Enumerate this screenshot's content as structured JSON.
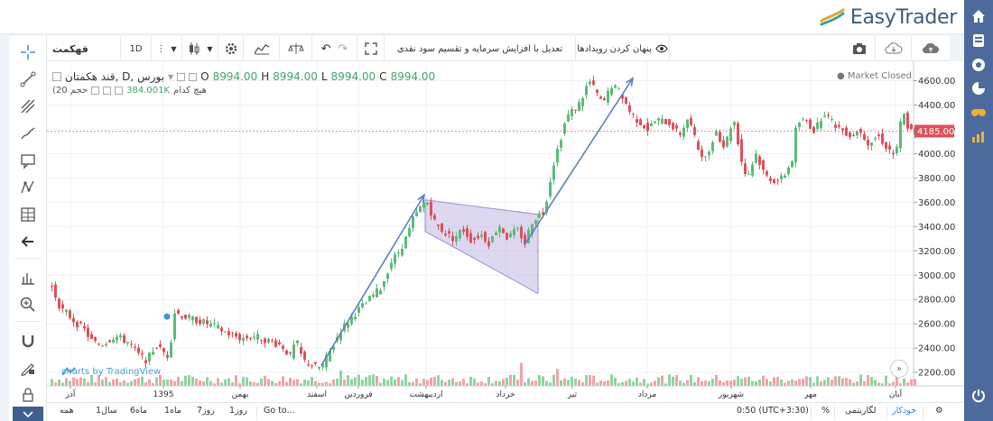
{
  "brand": {
    "logo_text": "EasyTrader"
  },
  "toolbar": {
    "symbol": "قهکمت",
    "interval": "1D",
    "add_label": "",
    "events_toggle": "پنهان کردن رویدادها",
    "adjustment": "تعدیل با افزایش سرمایه و تقسیم سود نقدی"
  },
  "legend": {
    "title": "بورس ,D ,قند هکمتان",
    "open_label": "O",
    "open": "8994.00",
    "high_label": "H",
    "high": "8994.00",
    "low_label": "L",
    "low": "8994.00",
    "close_label": "C",
    "close": "8994.00",
    "volume_name": "(حجم 20",
    "volume_value": "384.001K",
    "volume_tag": "هیچ کدام",
    "market_status": "Market Closed",
    "watermark": "charts by TradingView"
  },
  "chart_data": {
    "type": "candlestick",
    "yticks": [
      2200,
      2400,
      2600,
      2800,
      3000,
      3200,
      3400,
      3600,
      3800,
      4000,
      4200,
      4400,
      4600
    ],
    "ylim": [
      2090,
      4700
    ],
    "last_price": "4185.00",
    "x_labels": [
      "آذر",
      "1395",
      "بهمن",
      "اسفند",
      "فروردین",
      "اردیبهشت",
      "خرداد",
      "تیر",
      "مرداد",
      "شهریور",
      "مهر",
      "آبان"
    ],
    "colors": {
      "up": "#5dbb78",
      "down": "#e0505a",
      "vol_up": "#8fd49f",
      "vol_down": "#f1a3a8",
      "channel": "#b3a9de",
      "arrow": "#5f7fc0"
    },
    "path": [
      [
        0,
        2900
      ],
      [
        10,
        2720
      ],
      [
        15,
        2700
      ],
      [
        25,
        2620
      ],
      [
        35,
        2560
      ],
      [
        45,
        2450
      ],
      [
        55,
        2430
      ],
      [
        70,
        2500
      ],
      [
        85,
        2450
      ],
      [
        95,
        2350
      ],
      [
        105,
        2300
      ],
      [
        115,
        2420
      ],
      [
        125,
        2360
      ],
      [
        130,
        2330
      ],
      [
        135,
        2700
      ],
      [
        150,
        2650
      ],
      [
        165,
        2620
      ],
      [
        180,
        2580
      ],
      [
        195,
        2520
      ],
      [
        210,
        2480
      ],
      [
        225,
        2500
      ],
      [
        240,
        2460
      ],
      [
        255,
        2420
      ],
      [
        265,
        2320
      ],
      [
        270,
        2480
      ],
      [
        278,
        2300
      ],
      [
        290,
        2250
      ],
      [
        298,
        2240
      ],
      [
        310,
        2400
      ],
      [
        320,
        2550
      ],
      [
        335,
        2680
      ],
      [
        350,
        2790
      ],
      [
        365,
        2900
      ],
      [
        375,
        3100
      ],
      [
        385,
        3200
      ],
      [
        395,
        3350
      ],
      [
        400,
        3460
      ],
      [
        408,
        3550
      ],
      [
        415,
        3620
      ],
      [
        425,
        3420
      ],
      [
        435,
        3350
      ],
      [
        445,
        3300
      ],
      [
        455,
        3380
      ],
      [
        465,
        3280
      ],
      [
        475,
        3340
      ],
      [
        485,
        3260
      ],
      [
        495,
        3420
      ],
      [
        505,
        3300
      ],
      [
        515,
        3380
      ],
      [
        520,
        3320
      ],
      [
        525,
        3250
      ],
      [
        530,
        3430
      ],
      [
        540,
        3500
      ],
      [
        545,
        3520
      ],
      [
        555,
        3900
      ],
      [
        570,
        4300
      ],
      [
        585,
        4420
      ],
      [
        595,
        4600
      ],
      [
        605,
        4480
      ],
      [
        610,
        4400
      ],
      [
        620,
        4560
      ],
      [
        630,
        4500
      ],
      [
        640,
        4350
      ],
      [
        645,
        4300
      ],
      [
        660,
        4200
      ],
      [
        670,
        4280
      ],
      [
        685,
        4250
      ],
      [
        695,
        4150
      ],
      [
        705,
        4300
      ],
      [
        715,
        4050
      ],
      [
        725,
        3950
      ],
      [
        735,
        4200
      ],
      [
        745,
        4050
      ],
      [
        755,
        4300
      ],
      [
        765,
        3900
      ],
      [
        770,
        3800
      ],
      [
        780,
        4000
      ],
      [
        790,
        3820
      ],
      [
        800,
        3780
      ],
      [
        810,
        3800
      ],
      [
        820,
        3950
      ],
      [
        825,
        4250
      ],
      [
        835,
        4280
      ],
      [
        845,
        4180
      ],
      [
        855,
        4350
      ],
      [
        865,
        4250
      ],
      [
        875,
        4200
      ],
      [
        885,
        4150
      ],
      [
        895,
        4200
      ],
      [
        905,
        4080
      ],
      [
        915,
        4150
      ],
      [
        925,
        4050
      ],
      [
        935,
        3980
      ],
      [
        942,
        4360
      ],
      [
        950,
        4180
      ],
      [
        958,
        4200
      ]
    ],
    "volume_spikes": [
      [
        130,
        62
      ],
      [
        150,
        38
      ],
      [
        185,
        55
      ],
      [
        190,
        78
      ],
      [
        320,
        20
      ],
      [
        405,
        24
      ],
      [
        415,
        30
      ],
      [
        520,
        30
      ],
      [
        525,
        24
      ],
      [
        560,
        22
      ],
      [
        605,
        106
      ],
      [
        615,
        60
      ],
      [
        625,
        28
      ],
      [
        685,
        50
      ],
      [
        690,
        38
      ],
      [
        805,
        30
      ],
      [
        855,
        40
      ],
      [
        895,
        34
      ],
      [
        935,
        28
      ]
    ],
    "volume_max_visible": 106,
    "channel": [
      [
        415,
        3620
      ],
      [
        540,
        3500
      ],
      [
        540,
        2850
      ],
      [
        415,
        3360
      ]
    ],
    "arrows": [
      [
        [
          300,
          2260
        ],
        [
          414,
          3660
        ]
      ],
      [
        [
          525,
          3250
        ],
        [
          645,
          4620
        ]
      ]
    ]
  },
  "bottom": {
    "ranges": [
      "همه",
      "1سال",
      "6ماه",
      "1ماه",
      "7روز",
      "1روز",
      "Go to..."
    ],
    "time": "0:50 (UTC+3:30)",
    "percent": "%",
    "log": "لگاریتمی",
    "auto": "خودکار"
  }
}
